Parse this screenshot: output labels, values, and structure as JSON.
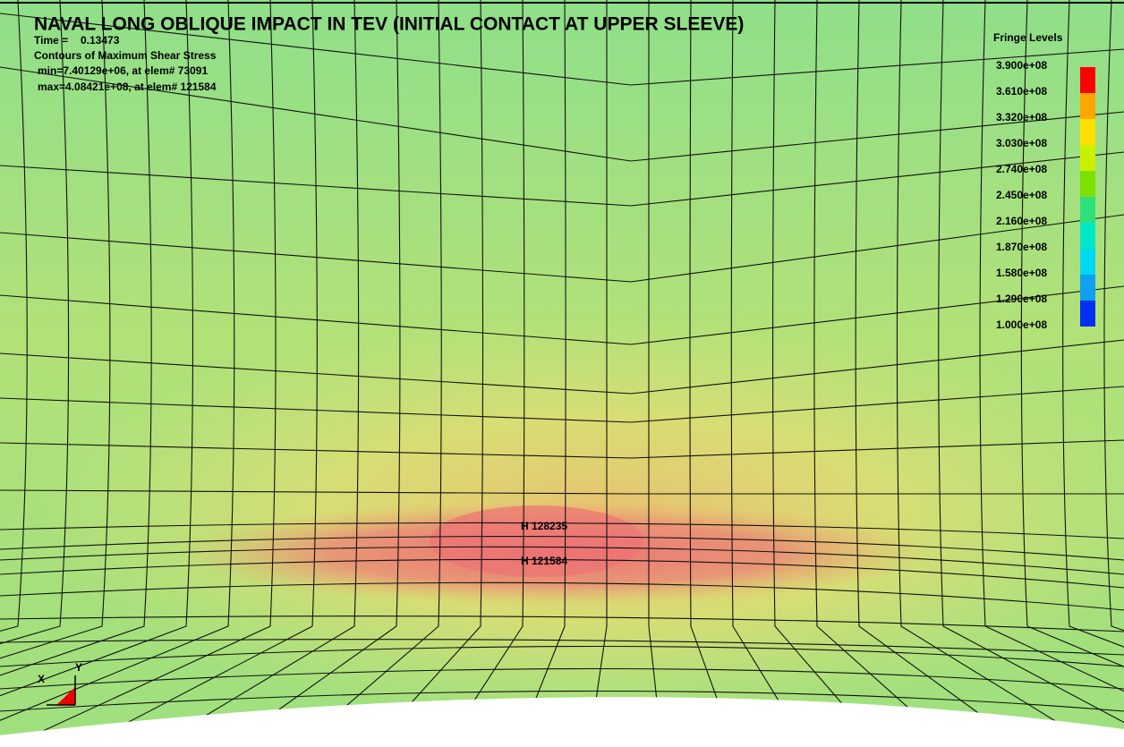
{
  "title": "NAVAL LONG OBLIQUE IMPACT IN TEV (INITIAL CONTACT AT UPPER SLEEVE)",
  "info": {
    "time_label": "Time =",
    "time_value": "0.13473",
    "contour": "Contours of Maximum Shear Stress",
    "min": "min=7.40129e+06, at elem# 73091",
    "max": "max=4.08421e+08, at elem# 121584"
  },
  "legend": {
    "title": "Fringe Levels",
    "levels": [
      "3.900e+08",
      "3.610e+08",
      "3.320e+08",
      "3.030e+08",
      "2.740e+08",
      "2.450e+08",
      "2.160e+08",
      "1.870e+08",
      "1.580e+08",
      "1.290e+08",
      "1.000e+08"
    ]
  },
  "annotations": [
    "H 128235",
    "H 121584"
  ],
  "triad": {
    "y": "Y",
    "x": "X"
  }
}
